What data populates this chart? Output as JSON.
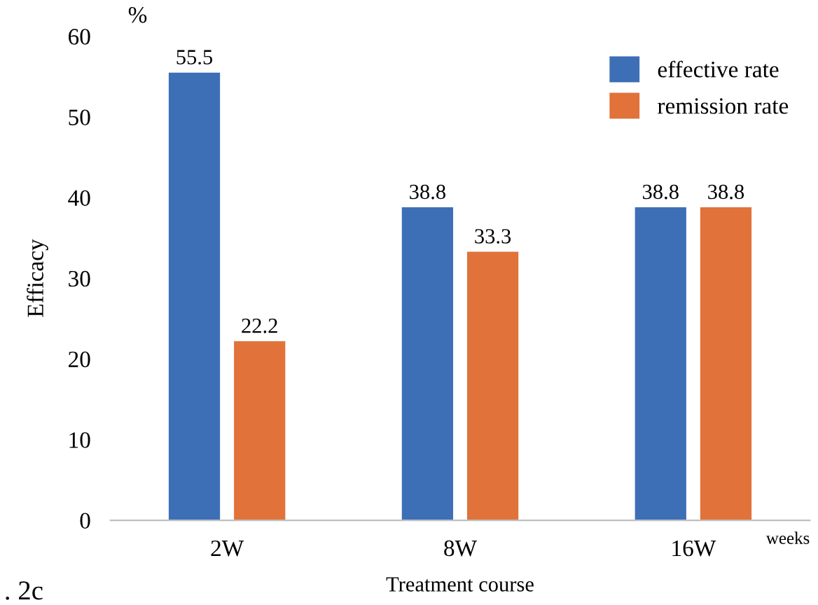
{
  "chart_data": {
    "type": "bar",
    "xlabel": "Treatment course",
    "ylabel": "Efficacy",
    "categories": [
      "2W",
      "8W",
      "16W"
    ],
    "series": [
      {
        "name": "effective rate",
        "color": "#3d6fb6",
        "values": [
          55.5,
          38.8,
          38.8
        ]
      },
      {
        "name": "remission rate",
        "color": "#e0723a",
        "values": [
          22.2,
          33.3,
          38.8
        ]
      }
    ],
    "ylim": [
      0,
      60
    ],
    "yticks": [
      0,
      10,
      20,
      30,
      40,
      50,
      60
    ],
    "grid": false,
    "legend": "top right",
    "data_labels": true,
    "annotations": [
      "%",
      "weeks",
      ". 2c"
    ]
  }
}
